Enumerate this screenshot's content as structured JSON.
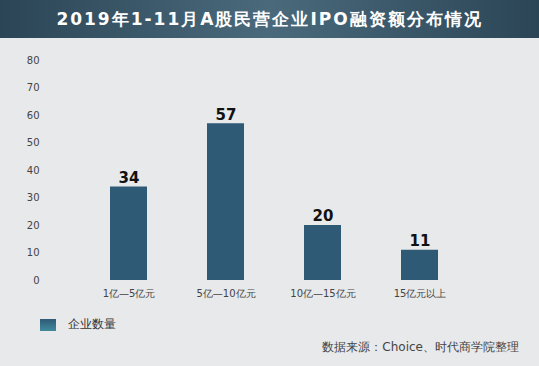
{
  "chart_data": {
    "type": "bar",
    "title": "2019年1-11月A股民营企业IPO融资额分布情况",
    "categories": [
      "1亿—5亿元",
      "5亿—10亿元",
      "10亿—15亿元",
      "15亿元以上"
    ],
    "series": [
      {
        "name": "企业数量",
        "color": "#2f5a76",
        "values": [
          34,
          57,
          20,
          11
        ]
      }
    ],
    "ylim": [
      0,
      80
    ],
    "yticks": [
      0,
      10,
      20,
      30,
      40,
      50,
      60,
      70,
      80
    ],
    "grid": false,
    "data_labels": true,
    "legend": "bottom-left",
    "source": "数据来源：Choice、时代商学院整理"
  }
}
